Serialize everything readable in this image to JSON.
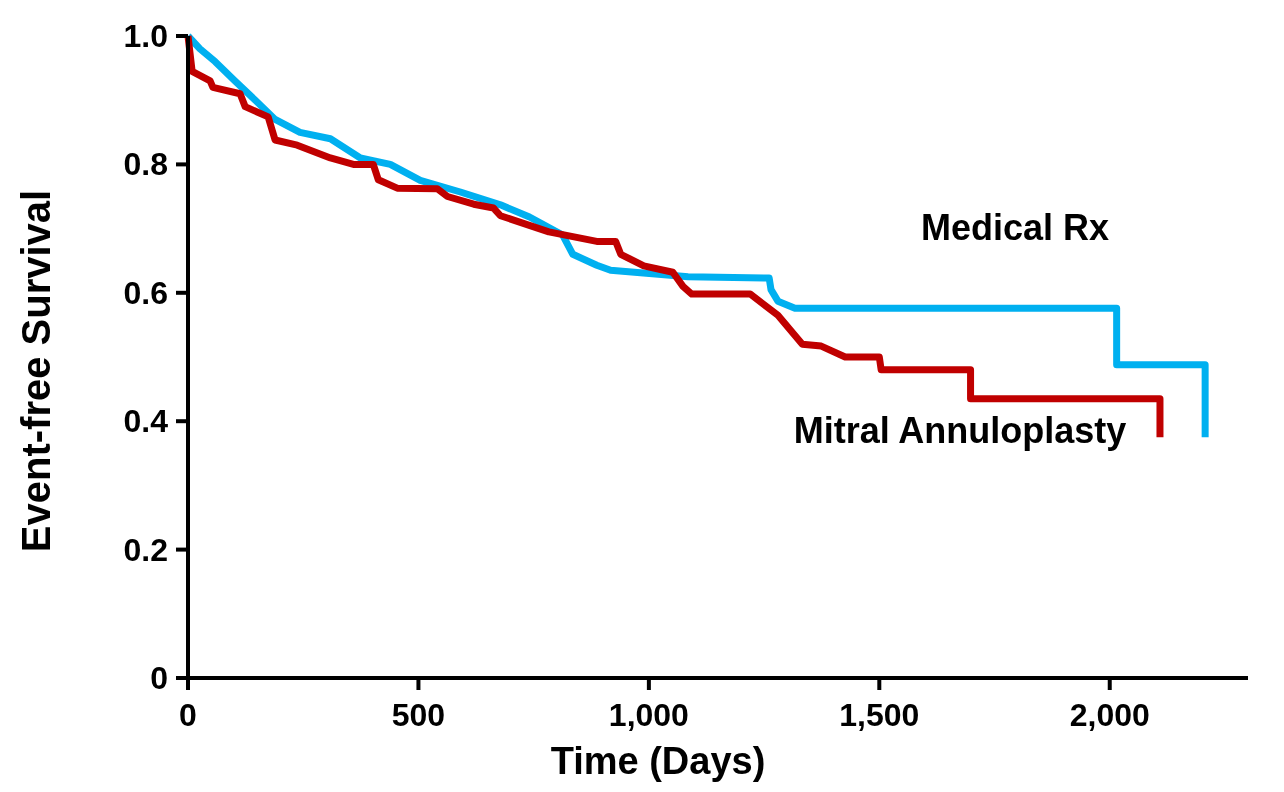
{
  "chart_data": {
    "type": "line",
    "xlabel": "Time (Days)",
    "ylabel": "Event-free Survival",
    "xlim": [
      0,
      2300
    ],
    "ylim": [
      0,
      1
    ],
    "xticks": [
      0,
      500,
      {
        "value": 1000,
        "label": "1,000"
      },
      {
        "value": 1500,
        "label": "1,500"
      },
      {
        "value": 2000,
        "label": "2,000"
      }
    ],
    "yticks": [
      0,
      {
        "value": 0.2,
        "label": "0.2"
      },
      {
        "value": 0.4,
        "label": "0.4"
      },
      {
        "value": 0.6,
        "label": "0.6"
      },
      {
        "value": 0.8,
        "label": "0.8"
      },
      {
        "value": 1,
        "label": "1.0"
      }
    ],
    "grid": false,
    "legend": false,
    "marker": "none",
    "line_style": "solid",
    "series": [
      {
        "name": "Medical Rx",
        "color": "#00b0f0",
        "x": [
          0,
          26,
          59,
          102,
          146,
          189,
          243,
          309,
          374,
          439,
          504,
          591,
          678,
          741,
          813,
          835,
          887,
          917,
          1085,
          1261,
          1265,
          1280,
          1317,
          2015,
          2015,
          2207,
          2207
        ],
        "values": [
          1.0,
          0.98,
          0.96,
          0.93,
          0.9,
          0.87,
          0.85,
          0.84,
          0.81,
          0.8,
          0.775,
          0.757,
          0.737,
          0.718,
          0.69,
          0.66,
          0.643,
          0.635,
          0.625,
          0.623,
          0.605,
          0.587,
          0.576,
          0.576,
          0.488,
          0.488,
          0.375
        ]
      },
      {
        "name": "Mitral Annuloplasty",
        "color": "#c00000",
        "x": [
          0,
          9,
          48,
          54,
          113,
          124,
          174,
          189,
          237,
          309,
          359,
          402,
          413,
          454,
          541,
          563,
          620,
          663,
          678,
          783,
          887,
          928,
          939,
          989,
          1052,
          1074,
          1093,
          1220,
          1280,
          1333,
          1374,
          1426,
          1500,
          1504,
          1698,
          1698,
          2109,
          2109
        ],
        "values": [
          1.0,
          0.945,
          0.93,
          0.92,
          0.91,
          0.89,
          0.874,
          0.838,
          0.83,
          0.81,
          0.8,
          0.8,
          0.776,
          0.763,
          0.762,
          0.75,
          0.738,
          0.732,
          0.72,
          0.695,
          0.68,
          0.68,
          0.66,
          0.642,
          0.632,
          0.61,
          0.598,
          0.598,
          0.565,
          0.52,
          0.517,
          0.5,
          0.5,
          0.48,
          0.48,
          0.435,
          0.435,
          0.375
        ]
      }
    ]
  }
}
